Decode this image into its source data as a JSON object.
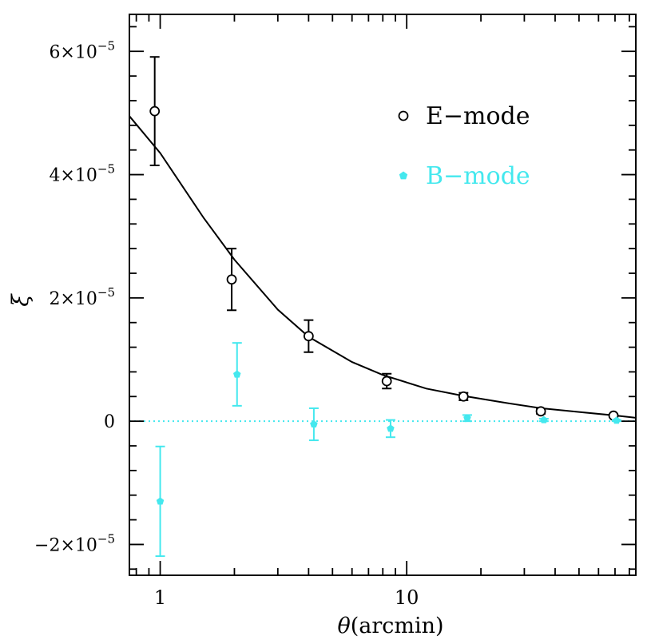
{
  "chart_data": {
    "type": "scatter",
    "xlabel_symbol": "θ",
    "xlabel_unit": "(arcmin)",
    "ylabel": "ξ",
    "xscale": "log",
    "xlim": [
      0.75,
      85
    ],
    "ylim": [
      -2.5e-05,
      6.6e-05
    ],
    "x_ticks": [
      {
        "value": 1,
        "label": "1"
      },
      {
        "value": 10,
        "label": "10"
      }
    ],
    "y_ticks": [
      {
        "value": 6e-05,
        "mant": "6",
        "exp": "−5"
      },
      {
        "value": 4e-05,
        "mant": "4",
        "exp": "−5"
      },
      {
        "value": 2e-05,
        "mant": "2",
        "exp": "−5"
      },
      {
        "value": 0,
        "mant": "0",
        "exp": ""
      },
      {
        "value": -2e-05,
        "mant": "−2",
        "exp": "−5"
      }
    ],
    "legend": {
      "placement": "top-right",
      "entries": [
        {
          "label": "E−mode",
          "marker": "open-circle",
          "color": "#000000"
        },
        {
          "label": "B−mode",
          "marker": "filled-pentagon",
          "color": "#44e8ee"
        }
      ]
    },
    "series": [
      {
        "name": "E−mode",
        "color": "#000000",
        "marker": "open-circle",
        "points": [
          {
            "x": 0.95,
            "y": 5.03e-05,
            "err": 8.8e-06
          },
          {
            "x": 1.95,
            "y": 2.3e-05,
            "err": 5e-06
          },
          {
            "x": 4.0,
            "y": 1.38e-05,
            "err": 2.6e-06
          },
          {
            "x": 8.3,
            "y": 6.5e-06,
            "err": 1.2e-06
          },
          {
            "x": 17.0,
            "y": 4e-06,
            "err": 6e-07
          },
          {
            "x": 35.0,
            "y": 1.6e-06,
            "err": 4e-07
          },
          {
            "x": 69.0,
            "y": 9e-07,
            "err": 2e-07
          }
        ]
      },
      {
        "name": "B−mode",
        "color": "#44e8ee",
        "marker": "filled-pentagon",
        "points": [
          {
            "x": 1.0,
            "y": -1.3e-05,
            "err": 8.9e-06
          },
          {
            "x": 2.05,
            "y": 7.6e-06,
            "err": 5.1e-06
          },
          {
            "x": 4.2,
            "y": -5e-07,
            "err": 2.6e-06
          },
          {
            "x": 8.6,
            "y": -1.2e-06,
            "err": 1.4e-06
          },
          {
            "x": 17.6,
            "y": 5e-07,
            "err": 5e-07
          },
          {
            "x": 36.0,
            "y": 2e-07,
            "err": 2e-07
          },
          {
            "x": 71.0,
            "y": 1e-07,
            "err": 1e-07
          }
        ]
      }
    ],
    "model_curve": {
      "color": "#000000",
      "points": [
        [
          0.75,
          4.95e-05
        ],
        [
          1.0,
          4.35e-05
        ],
        [
          1.5,
          3.3e-05
        ],
        [
          2.0,
          2.62e-05
        ],
        [
          3.0,
          1.81e-05
        ],
        [
          4.0,
          1.37e-05
        ],
        [
          6.0,
          9.6e-06
        ],
        [
          8.0,
          7.5e-06
        ],
        [
          12.0,
          5.3e-06
        ],
        [
          17.0,
          4.1e-06
        ],
        [
          25.0,
          3e-06
        ],
        [
          35.0,
          2.1e-06
        ],
        [
          50.0,
          1.5e-06
        ],
        [
          69.0,
          9.5e-07
        ],
        [
          85.0,
          5.5e-07
        ]
      ]
    },
    "zero_line": {
      "y": 0,
      "color": "#44e8ee",
      "style": "dotted"
    }
  }
}
